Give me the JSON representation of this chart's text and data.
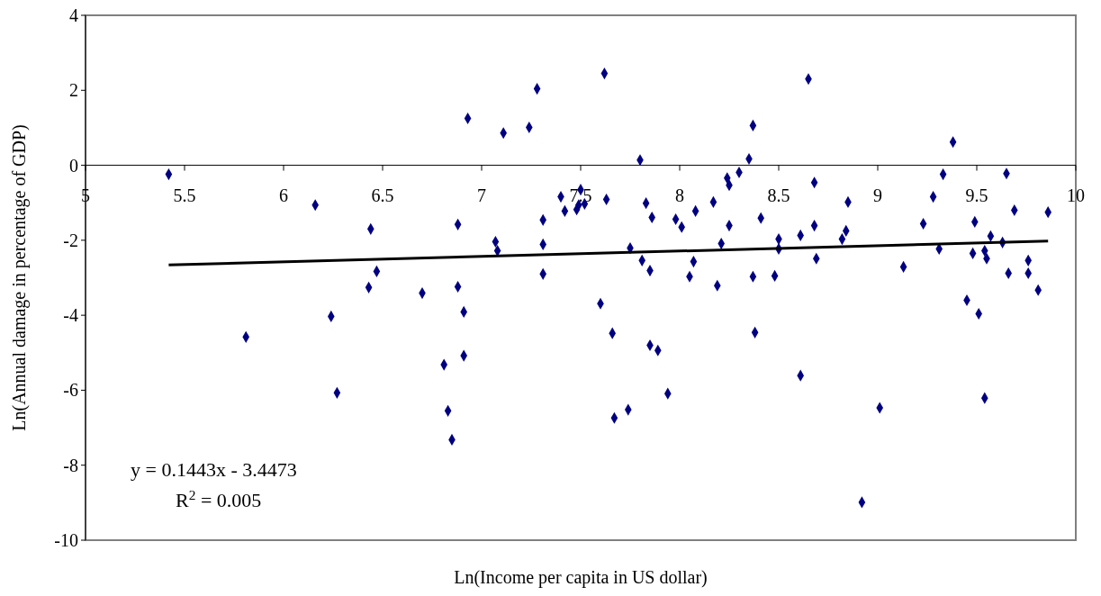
{
  "chart_data": {
    "type": "scatter",
    "xlabel": "Ln(Income per capita in US dollar)",
    "ylabel": "Ln(Annual damage in percentage of GDP)",
    "xlim": [
      5,
      10
    ],
    "ylim": [
      -10,
      4
    ],
    "xticks": [
      5,
      5.5,
      6,
      6.5,
      7,
      7.5,
      8,
      8.5,
      9,
      9.5,
      10
    ],
    "yticks": [
      -10,
      -8,
      -6,
      -4,
      -2,
      0,
      2,
      4
    ],
    "grid": false,
    "annotations": [
      "y = 0.1443x - 3.4473",
      "R$^{2}$ = 0.005"
    ],
    "series": [
      {
        "marker": "diamond",
        "color": "#000080",
        "x": [
          5.42,
          5.81,
          6.16,
          6.27,
          6.24,
          6.43,
          6.44,
          6.47,
          6.7,
          6.81,
          6.83,
          6.85,
          6.88,
          6.88,
          6.91,
          6.91,
          6.93,
          7.07,
          7.08,
          7.11,
          7.24,
          7.28,
          7.31,
          7.31,
          7.31,
          7.4,
          7.42,
          7.5,
          7.48,
          7.49,
          7.52,
          7.6,
          7.62,
          7.63,
          7.66,
          7.67,
          7.74,
          7.75,
          7.8,
          7.81,
          7.83,
          7.85,
          7.86,
          7.85,
          7.89,
          7.94,
          7.98,
          8.01,
          8.05,
          8.07,
          8.08,
          8.17,
          8.19,
          8.21,
          8.24,
          8.25,
          8.25,
          8.3,
          8.35,
          8.37,
          8.37,
          8.38,
          8.41,
          8.48,
          8.5,
          8.5,
          8.61,
          8.61,
          8.65,
          8.68,
          8.68,
          8.69,
          8.82,
          8.84,
          8.85,
          8.92,
          9.01,
          9.13,
          9.23,
          9.28,
          9.31,
          9.33,
          9.38,
          9.45,
          9.48,
          9.49,
          9.51,
          9.54,
          9.54,
          9.55,
          9.57,
          9.63,
          9.65,
          9.66,
          9.69,
          9.76,
          9.76,
          9.81,
          9.86
        ],
        "values": [
          -0.24,
          -4.58,
          -1.06,
          -6.07,
          -4.03,
          -3.26,
          -1.7,
          -2.83,
          -3.41,
          -5.32,
          -6.55,
          -7.32,
          -3.24,
          -1.58,
          -3.91,
          -5.08,
          1.25,
          -2.04,
          -2.28,
          0.86,
          1.01,
          2.04,
          -1.46,
          -2.11,
          -2.9,
          -0.84,
          -1.22,
          -0.65,
          -1.18,
          -1.06,
          -1.03,
          -3.69,
          2.45,
          -0.91,
          -4.48,
          -6.74,
          -6.52,
          -2.21,
          0.14,
          -2.54,
          -1.01,
          -2.81,
          -1.39,
          -4.8,
          -4.94,
          -6.09,
          -1.44,
          -1.65,
          -2.97,
          -2.57,
          -1.22,
          -0.98,
          -3.21,
          -2.09,
          -0.34,
          -0.53,
          -1.61,
          -0.19,
          0.17,
          1.06,
          -2.97,
          -4.46,
          -1.41,
          -2.95,
          -1.97,
          -2.23,
          -5.61,
          -1.87,
          2.3,
          -0.46,
          -1.61,
          -2.49,
          -1.97,
          -1.75,
          -0.98,
          -8.99,
          -6.47,
          -2.71,
          -1.56,
          -0.84,
          -2.23,
          -0.24,
          0.62,
          -3.6,
          -2.35,
          -1.51,
          -3.96,
          -6.21,
          -2.28,
          -2.49,
          -1.89,
          -2.06,
          -0.22,
          -2.88,
          -1.2,
          -2.54,
          -2.88,
          -3.33,
          -1.25
        ]
      },
      {
        "type": "line",
        "color": "#000000",
        "line_style": "solid",
        "x": [
          5.42,
          9.86
        ],
        "values": [
          -2.66,
          -2.02
        ]
      }
    ]
  }
}
